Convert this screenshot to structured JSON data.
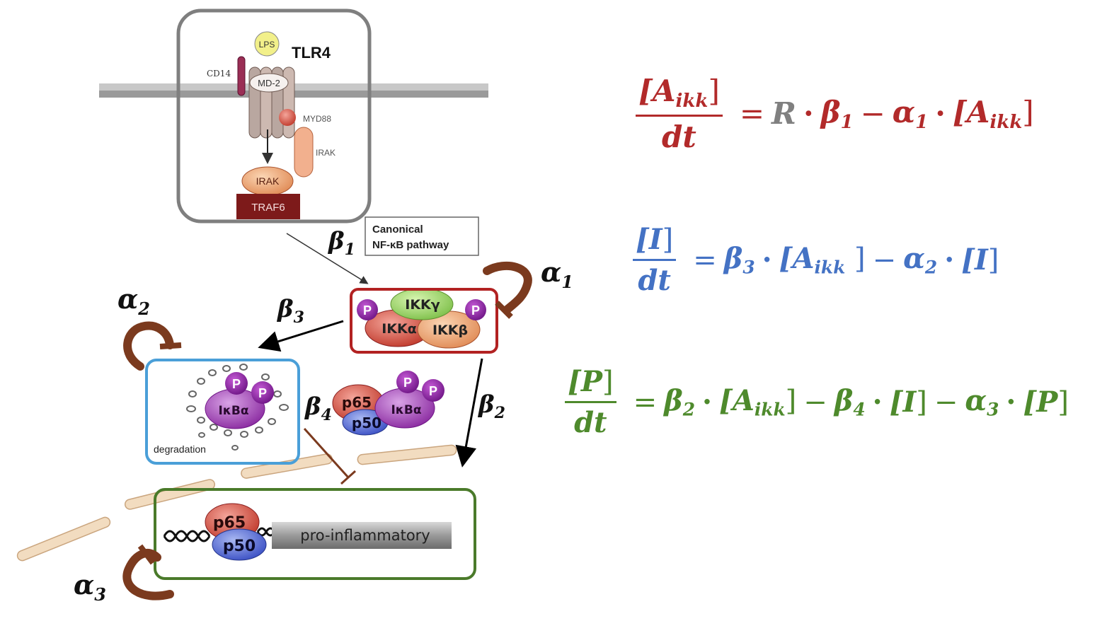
{
  "diagram": {
    "receptor_label": "TLR4",
    "molecule_labels": {
      "lps": "LPS",
      "cd14": "CD14",
      "md2": "MD-2",
      "myd88": "MYD88",
      "irak_right": "IRAK",
      "irak": "IRAK",
      "traf6": "TRAF6"
    },
    "pathway_label_line1": "Canonical",
    "pathway_label_line2": "NF-κB pathway",
    "ikk_labels": {
      "gamma": "IKKγ",
      "alpha": "IKKα",
      "beta": "IKKβ",
      "phospho": "P"
    },
    "ikba_label": "IκBα",
    "degradation_label": "degradation",
    "p65_label": "p65",
    "p50_label": "p50",
    "gene_label": "pro-inflammatory",
    "rate_labels": {
      "beta1": "β",
      "beta1_sub": "1",
      "beta2": "β",
      "beta2_sub": "2",
      "beta3": "β",
      "beta3_sub": "3",
      "beta4": "β",
      "beta4_sub": "4",
      "alpha1": "α",
      "alpha1_sub": "1",
      "alpha2": "α",
      "alpha2_sub": "2",
      "alpha3": "α",
      "alpha3_sub": "3"
    },
    "colors": {
      "receptor_box": "#7f7f7f",
      "ikk_box": "#b22222",
      "ikba_box": "#4a9fd8",
      "nucleus_box": "#4a7a2a",
      "decay_arrows": "#7b3a1e"
    }
  },
  "equations": [
    {
      "color": "#b22a2a",
      "lhs_num": "[A",
      "lhs_num_sub": "ikk",
      "lhs_num_close": "]",
      "lhs_den": "dt",
      "rhs": [
        {
          "t": "=",
          "k": "op"
        },
        {
          "t": "R",
          "k": "var",
          "gray": true
        },
        {
          "t": "·",
          "k": "dot"
        },
        {
          "t": "β",
          "s": "1",
          "k": "var"
        },
        {
          "t": "−",
          "k": "op"
        },
        {
          "t": "α",
          "s": "1",
          "k": "var"
        },
        {
          "t": "·",
          "k": "dot"
        },
        {
          "t": "[A",
          "s": "ikk",
          "c": "]",
          "k": "var"
        }
      ]
    },
    {
      "color": "#4472c4",
      "lhs_num": "[I",
      "lhs_num_sub": "",
      "lhs_num_close": "]",
      "lhs_den": "dt",
      "rhs": [
        {
          "t": "=",
          "k": "op"
        },
        {
          "t": "β",
          "s": "3",
          "k": "var"
        },
        {
          "t": "·",
          "k": "dot"
        },
        {
          "t": "[A",
          "s": "ikk",
          "c": " ]",
          "k": "var"
        },
        {
          "t": "−",
          "k": "op"
        },
        {
          "t": "α",
          "s": "2",
          "k": "var"
        },
        {
          "t": "·",
          "k": "dot"
        },
        {
          "t": "[I",
          "s": "",
          "c": "]",
          "k": "var"
        }
      ]
    },
    {
      "color": "#4e8a2c",
      "lhs_num": "[P",
      "lhs_num_sub": "",
      "lhs_num_close": "]",
      "lhs_den": "dt",
      "rhs": [
        {
          "t": "=",
          "k": "op"
        },
        {
          "t": "β",
          "s": "2",
          "k": "var"
        },
        {
          "t": "·",
          "k": "dot"
        },
        {
          "t": "[A",
          "s": "ikk",
          "c": "]",
          "k": "var"
        },
        {
          "t": "−",
          "k": "op"
        },
        {
          "t": "β",
          "s": "4",
          "k": "var"
        },
        {
          "t": "·",
          "k": "dot"
        },
        {
          "t": "[I",
          "s": "",
          "c": "]",
          "k": "var"
        },
        {
          "t": "−",
          "k": "op"
        },
        {
          "t": "α",
          "s": "3",
          "k": "var"
        },
        {
          "t": "·",
          "k": "dot"
        },
        {
          "t": "[P",
          "s": "",
          "c": "]",
          "k": "var"
        }
      ]
    }
  ]
}
